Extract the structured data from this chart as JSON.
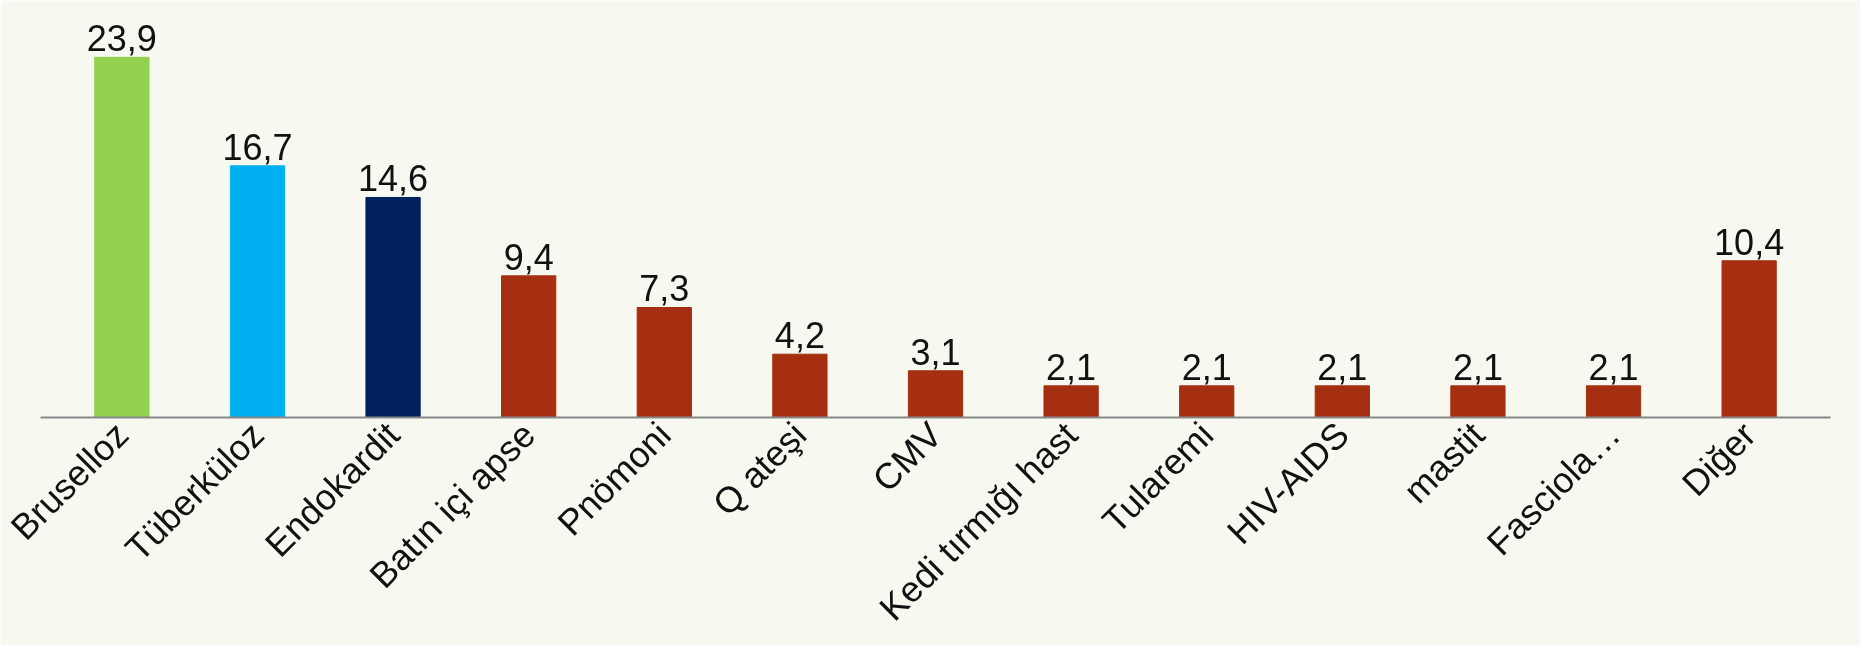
{
  "chart_data": {
    "type": "bar",
    "categories": [
      "Bruselloz",
      "Tüberküloz",
      "Endokardit",
      "Batın içi apse",
      "Pnömoni",
      "Q ateşi",
      "CMV",
      "Kedi tırmığı hast",
      "Tularemi",
      "HIV-AIDS",
      "mastit",
      "Fasciola…",
      "Diğer"
    ],
    "values": [
      23.9,
      16.7,
      14.6,
      9.4,
      7.3,
      4.2,
      3.1,
      2.1,
      2.1,
      2.1,
      2.1,
      2.1,
      10.4
    ],
    "colors": [
      "#92d050",
      "#00b0f0",
      "#002060",
      "#a52f10",
      "#a52f10",
      "#a52f10",
      "#a52f10",
      "#a52f10",
      "#a52f10",
      "#a52f10",
      "#a52f10",
      "#a52f10",
      "#a52f10"
    ],
    "value_labels": [
      "23,9",
      "16,7",
      "14,6",
      "9,4",
      "7,3",
      "4,2",
      "3,1",
      "2,1",
      "2,1",
      "2,1",
      "2,1",
      "2,1",
      "10,4"
    ],
    "grid": false
  }
}
